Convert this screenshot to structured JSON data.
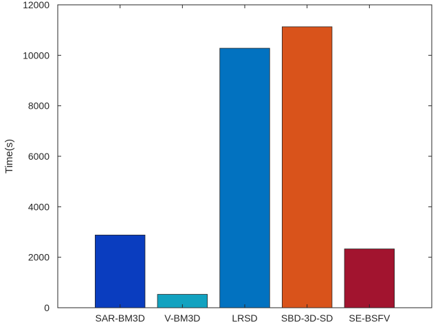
{
  "chart_data": {
    "type": "bar",
    "title": "",
    "xlabel": "",
    "ylabel": "Time(s)",
    "categories": [
      "SAR-BM3D",
      "V-BM3D",
      "LRSD",
      "SBD-3D-SD",
      "SE-BSFV"
    ],
    "values": [
      2880,
      530,
      10280,
      11130,
      2330
    ],
    "colors": [
      "#0a3dbf",
      "#12a2c0",
      "#0272c0",
      "#d9531b",
      "#a2142f"
    ],
    "ylim": [
      0,
      12000
    ],
    "yticks": [
      0,
      2000,
      4000,
      6000,
      8000,
      10000,
      12000
    ],
    "grid": false,
    "legend": "none"
  }
}
